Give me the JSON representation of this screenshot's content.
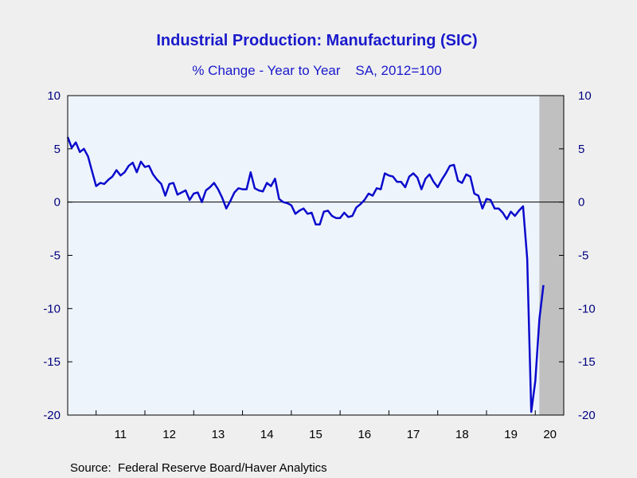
{
  "chart_data": {
    "type": "line",
    "title": "Industrial Production: Manufacturing (SIC)",
    "subtitle": "% Change - Year to Year    SA, 2012=100",
    "source": "Source:  Federal Reserve Board/Haver Analytics",
    "ylim": [
      -20,
      10
    ],
    "yticks": [
      "10",
      "5",
      "0",
      "-5",
      "-10",
      "-15",
      "-20"
    ],
    "ytick_values": [
      10,
      5,
      0,
      -5,
      -10,
      -15,
      -20
    ],
    "xlim": [
      2010.417,
      2020.583
    ],
    "xtick_labels": [
      "11",
      "12",
      "13",
      "14",
      "15",
      "16",
      "17",
      "18",
      "19",
      "20"
    ],
    "xtick_centers": [
      2011.5,
      2012.5,
      2013.5,
      2014.5,
      2015.5,
      2016.5,
      2017.5,
      2018.5,
      2019.5,
      2020.3
    ],
    "year_boundaries": [
      2011,
      2012,
      2013,
      2014,
      2015,
      2016,
      2017,
      2018,
      2019,
      2020
    ],
    "recession": {
      "start": 2020.083,
      "end": 2020.583,
      "color": "#c0c0c0"
    },
    "zero_line": true,
    "grid": false,
    "colors": {
      "line": "#0a0acc",
      "plot_bg": "#eef4fc",
      "page_bg": "#efefef",
      "title": "#1a1acc",
      "axis_text": "#000080"
    },
    "series": [
      {
        "start": 2010.417,
        "step": 0.08333,
        "values": [
          6.1,
          5.1,
          5.6,
          4.7,
          5.0,
          4.3,
          2.9,
          1.5,
          1.8,
          1.7,
          2.1,
          2.4,
          3.0,
          2.5,
          2.8,
          3.4,
          3.7,
          2.8,
          3.8,
          3.3,
          3.4,
          2.6,
          2.1,
          1.7,
          0.6,
          1.7,
          1.8,
          0.7,
          0.9,
          1.1,
          0.2,
          0.8,
          0.9,
          0.0,
          1.1,
          1.4,
          1.8,
          1.2,
          0.4,
          -0.6,
          0.1,
          0.9,
          1.3,
          1.2,
          1.2,
          2.8,
          1.3,
          1.1,
          1.0,
          1.8,
          1.5,
          2.2,
          0.3,
          0.0,
          -0.1,
          -0.3,
          -1.1,
          -0.8,
          -0.6,
          -1.1,
          -1.0,
          -2.1,
          -2.1,
          -0.9,
          -0.8,
          -1.3,
          -1.5,
          -1.5,
          -1.0,
          -1.4,
          -1.3,
          -0.5,
          -0.2,
          0.2,
          0.8,
          0.6,
          1.3,
          1.2,
          2.7,
          2.5,
          2.4,
          1.9,
          1.9,
          1.4,
          2.4,
          2.7,
          2.3,
          1.2,
          2.2,
          2.6,
          1.9,
          1.4,
          2.1,
          2.7,
          3.4,
          3.5,
          2.0,
          1.8,
          2.6,
          2.4,
          0.8,
          0.6,
          -0.6,
          0.3,
          0.2,
          -0.6,
          -0.6,
          -1.0,
          -1.6,
          -0.9,
          -1.3,
          -0.8,
          -0.4,
          -5.3,
          -19.7,
          -16.8,
          -11.0,
          -7.8
        ]
      }
    ]
  }
}
